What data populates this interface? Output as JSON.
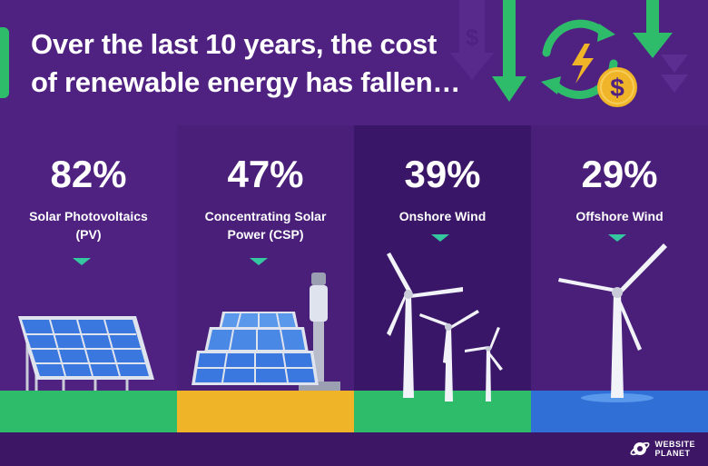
{
  "header": {
    "title_line1": "Over the last 10 years, the cost",
    "title_line2": "of renewable energy has fallen…"
  },
  "icons": {
    "cycle": "recycle-arrows-icon",
    "lightning": "lightning-bolt-icon",
    "dollar": "dollar-coin-icon",
    "arrow": "down-arrow-icon"
  },
  "decor_text": {
    "dollar_sign": "$"
  },
  "panels": [
    {
      "id": "pv",
      "percent": "82%",
      "label_line1": "Solar Photovoltaics",
      "label_line2": "(PV)",
      "bg": "#4f2282",
      "ground": "#2ebc6b"
    },
    {
      "id": "csp",
      "percent": "47%",
      "label_line1": "Concentrating Solar",
      "label_line2": "Power (CSP)",
      "bg": "#4a1f7a",
      "ground": "#f0b428"
    },
    {
      "id": "onshore",
      "percent": "39%",
      "label_line1": "Onshore Wind",
      "label_line2": "",
      "bg": "#3a1668",
      "ground": "#2ebc6b"
    },
    {
      "id": "offshore",
      "percent": "29%",
      "label_line1": "Offshore Wind",
      "label_line2": "",
      "bg": "#4a1f7a",
      "ground": "#2f6fd6"
    }
  ],
  "brand": {
    "line1": "WEBSITE",
    "line2": "PLANET"
  },
  "colors": {
    "green": "#2ebc6b",
    "teal_marker": "#35c8a0",
    "accent_yellow": "#f0b428",
    "solar_blue": "#3a78e0"
  }
}
